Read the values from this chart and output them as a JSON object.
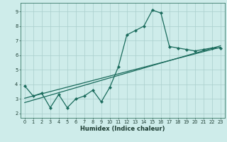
{
  "xlabel": "Humidex (Indice chaleur)",
  "bg_color": "#ceecea",
  "grid_color": "#aacfcc",
  "line_color": "#1a6b5c",
  "xlim_min": -0.5,
  "xlim_max": 23.5,
  "ylim_min": 1.7,
  "ylim_max": 9.6,
  "xticks": [
    0,
    1,
    2,
    3,
    4,
    5,
    6,
    7,
    8,
    9,
    10,
    11,
    12,
    13,
    14,
    15,
    16,
    17,
    18,
    19,
    20,
    21,
    22,
    23
  ],
  "yticks": [
    2,
    3,
    4,
    5,
    6,
    7,
    8,
    9
  ],
  "series1_x": [
    0,
    1,
    2,
    3,
    4,
    5,
    6,
    7,
    8,
    9,
    10,
    11,
    12,
    13,
    14,
    15,
    16,
    17,
    18,
    19,
    20,
    21,
    22,
    23
  ],
  "series1_y": [
    3.9,
    3.2,
    3.4,
    2.4,
    3.3,
    2.4,
    3.0,
    3.2,
    3.6,
    2.8,
    3.8,
    5.2,
    7.4,
    7.7,
    8.0,
    9.1,
    8.9,
    6.6,
    6.5,
    6.4,
    6.3,
    6.4,
    6.5,
    6.5
  ],
  "series2_x": [
    0,
    23
  ],
  "series2_y": [
    3.05,
    6.55
  ],
  "series3_x": [
    0,
    23
  ],
  "series3_y": [
    2.75,
    6.65
  ],
  "marker_size": 2.2,
  "linewidth": 0.9,
  "tick_fontsize": 4.8,
  "label_fontsize": 6.0,
  "spine_color": "#3a7a6a"
}
